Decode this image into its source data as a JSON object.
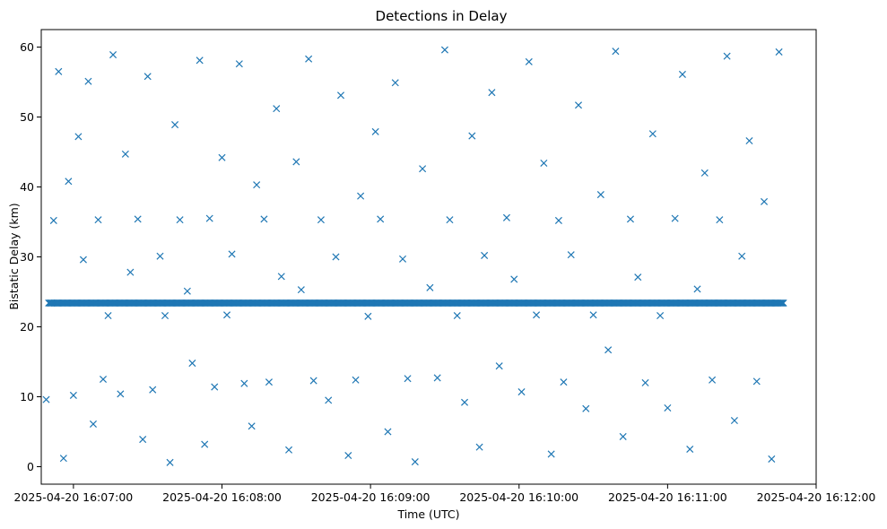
{
  "chart_data": {
    "type": "scatter",
    "title": "Detections in Delay",
    "xlabel": "Time (UTC)",
    "ylabel": "Bistatic Delay (km)",
    "xlim": [
      "2025-04-20 16:06:47",
      "2025-04-20 16:12:00"
    ],
    "ylim": [
      -2.5,
      62.5
    ],
    "xticks": [
      "2025-04-20 16:07:00",
      "2025-04-20 16:08:00",
      "2025-04-20 16:09:00",
      "2025-04-20 16:10:00",
      "2025-04-20 16:11:00",
      "2025-04-20 16:12:00"
    ],
    "yticks": [
      0,
      10,
      20,
      30,
      40,
      50,
      60
    ],
    "grid": false,
    "legend": "none",
    "marker": "x",
    "color": "#1f77b4",
    "series": [
      {
        "points": [
          [
            "2025-04-20 16:06:49",
            9.6
          ],
          [
            "2025-04-20 16:06:51",
            23.4
          ],
          [
            "2025-04-20 16:06:52",
            35.2
          ],
          [
            "2025-04-20 16:06:54",
            56.5
          ],
          [
            "2025-04-20 16:06:56",
            1.2
          ],
          [
            "2025-04-20 16:06:58",
            40.8
          ],
          [
            "2025-04-20 16:07:00",
            10.2
          ],
          [
            "2025-04-20 16:07:02",
            47.2
          ],
          [
            "2025-04-20 16:07:04",
            29.6
          ],
          [
            "2025-04-20 16:07:06",
            55.1
          ],
          [
            "2025-04-20 16:07:08",
            6.1
          ],
          [
            "2025-04-20 16:07:10",
            35.3
          ],
          [
            "2025-04-20 16:07:12",
            12.5
          ],
          [
            "2025-04-20 16:07:14",
            21.6
          ],
          [
            "2025-04-20 16:07:16",
            58.9
          ],
          [
            "2025-04-20 16:07:19",
            10.4
          ],
          [
            "2025-04-20 16:07:21",
            44.7
          ],
          [
            "2025-04-20 16:07:23",
            27.8
          ],
          [
            "2025-04-20 16:07:26",
            35.4
          ],
          [
            "2025-04-20 16:07:28",
            3.9
          ],
          [
            "2025-04-20 16:07:30",
            55.8
          ],
          [
            "2025-04-20 16:07:32",
            11.0
          ],
          [
            "2025-04-20 16:07:35",
            30.1
          ],
          [
            "2025-04-20 16:07:37",
            21.6
          ],
          [
            "2025-04-20 16:07:39",
            0.6
          ],
          [
            "2025-04-20 16:07:41",
            48.9
          ],
          [
            "2025-04-20 16:07:43",
            35.3
          ],
          [
            "2025-04-20 16:07:46",
            25.1
          ],
          [
            "2025-04-20 16:07:48",
            14.8
          ],
          [
            "2025-04-20 16:07:51",
            58.1
          ],
          [
            "2025-04-20 16:07:53",
            3.2
          ],
          [
            "2025-04-20 16:07:55",
            35.5
          ],
          [
            "2025-04-20 16:07:57",
            11.4
          ],
          [
            "2025-04-20 16:08:00",
            44.2
          ],
          [
            "2025-04-20 16:08:02",
            21.7
          ],
          [
            "2025-04-20 16:08:04",
            30.4
          ],
          [
            "2025-04-20 16:08:07",
            57.6
          ],
          [
            "2025-04-20 16:08:09",
            11.9
          ],
          [
            "2025-04-20 16:08:12",
            5.8
          ],
          [
            "2025-04-20 16:08:14",
            40.3
          ],
          [
            "2025-04-20 16:08:17",
            35.4
          ],
          [
            "2025-04-20 16:08:19",
            12.1
          ],
          [
            "2025-04-20 16:08:22",
            51.2
          ],
          [
            "2025-04-20 16:08:24",
            27.2
          ],
          [
            "2025-04-20 16:08:27",
            2.4
          ],
          [
            "2025-04-20 16:08:30",
            43.6
          ],
          [
            "2025-04-20 16:08:32",
            25.3
          ],
          [
            "2025-04-20 16:08:35",
            58.3
          ],
          [
            "2025-04-20 16:08:37",
            12.3
          ],
          [
            "2025-04-20 16:08:40",
            35.3
          ],
          [
            "2025-04-20 16:08:43",
            9.5
          ],
          [
            "2025-04-20 16:08:46",
            30.0
          ],
          [
            "2025-04-20 16:08:48",
            53.1
          ],
          [
            "2025-04-20 16:08:51",
            1.6
          ],
          [
            "2025-04-20 16:08:54",
            12.4
          ],
          [
            "2025-04-20 16:08:56",
            38.7
          ],
          [
            "2025-04-20 16:08:59",
            21.5
          ],
          [
            "2025-04-20 16:09:02",
            47.9
          ],
          [
            "2025-04-20 16:09:04",
            35.4
          ],
          [
            "2025-04-20 16:09:07",
            5.0
          ],
          [
            "2025-04-20 16:09:10",
            54.9
          ],
          [
            "2025-04-20 16:09:13",
            29.7
          ],
          [
            "2025-04-20 16:09:15",
            12.6
          ],
          [
            "2025-04-20 16:09:18",
            0.7
          ],
          [
            "2025-04-20 16:09:21",
            42.6
          ],
          [
            "2025-04-20 16:09:24",
            25.6
          ],
          [
            "2025-04-20 16:09:27",
            12.7
          ],
          [
            "2025-04-20 16:09:30",
            59.6
          ],
          [
            "2025-04-20 16:09:32",
            35.3
          ],
          [
            "2025-04-20 16:09:35",
            21.6
          ],
          [
            "2025-04-20 16:09:38",
            9.2
          ],
          [
            "2025-04-20 16:09:41",
            47.3
          ],
          [
            "2025-04-20 16:09:44",
            2.8
          ],
          [
            "2025-04-20 16:09:46",
            30.2
          ],
          [
            "2025-04-20 16:09:49",
            53.5
          ],
          [
            "2025-04-20 16:09:52",
            14.4
          ],
          [
            "2025-04-20 16:09:55",
            35.6
          ],
          [
            "2025-04-20 16:09:58",
            26.8
          ],
          [
            "2025-04-20 16:10:01",
            10.7
          ],
          [
            "2025-04-20 16:10:04",
            57.9
          ],
          [
            "2025-04-20 16:10:07",
            21.7
          ],
          [
            "2025-04-20 16:10:10",
            43.4
          ],
          [
            "2025-04-20 16:10:13",
            1.8
          ],
          [
            "2025-04-20 16:10:16",
            35.2
          ],
          [
            "2025-04-20 16:10:18",
            12.1
          ],
          [
            "2025-04-20 16:10:21",
            30.3
          ],
          [
            "2025-04-20 16:10:24",
            51.7
          ],
          [
            "2025-04-20 16:10:27",
            8.3
          ],
          [
            "2025-04-20 16:10:30",
            21.7
          ],
          [
            "2025-04-20 16:10:33",
            38.9
          ],
          [
            "2025-04-20 16:10:36",
            16.7
          ],
          [
            "2025-04-20 16:10:39",
            59.4
          ],
          [
            "2025-04-20 16:10:42",
            4.3
          ],
          [
            "2025-04-20 16:10:45",
            35.4
          ],
          [
            "2025-04-20 16:10:48",
            27.1
          ],
          [
            "2025-04-20 16:10:51",
            12.0
          ],
          [
            "2025-04-20 16:10:54",
            47.6
          ],
          [
            "2025-04-20 16:10:57",
            21.6
          ],
          [
            "2025-04-20 16:11:00",
            8.4
          ],
          [
            "2025-04-20 16:11:03",
            35.5
          ],
          [
            "2025-04-20 16:11:06",
            56.1
          ],
          [
            "2025-04-20 16:11:09",
            2.5
          ],
          [
            "2025-04-20 16:11:12",
            25.4
          ],
          [
            "2025-04-20 16:11:15",
            42.0
          ],
          [
            "2025-04-20 16:11:18",
            12.4
          ],
          [
            "2025-04-20 16:11:21",
            35.3
          ],
          [
            "2025-04-20 16:11:24",
            58.7
          ],
          [
            "2025-04-20 16:11:27",
            6.6
          ],
          [
            "2025-04-20 16:11:30",
            30.1
          ],
          [
            "2025-04-20 16:11:33",
            46.6
          ],
          [
            "2025-04-20 16:11:36",
            12.2
          ],
          [
            "2025-04-20 16:11:39",
            37.9
          ],
          [
            "2025-04-20 16:11:42",
            1.1
          ],
          [
            "2025-04-20 16:11:45",
            59.3
          ]
        ]
      }
    ],
    "band_23_4_km": {
      "y": 23.4,
      "x_start": "2025-04-20 16:06:50",
      "x_end": "2025-04-20 16:11:47"
    }
  }
}
